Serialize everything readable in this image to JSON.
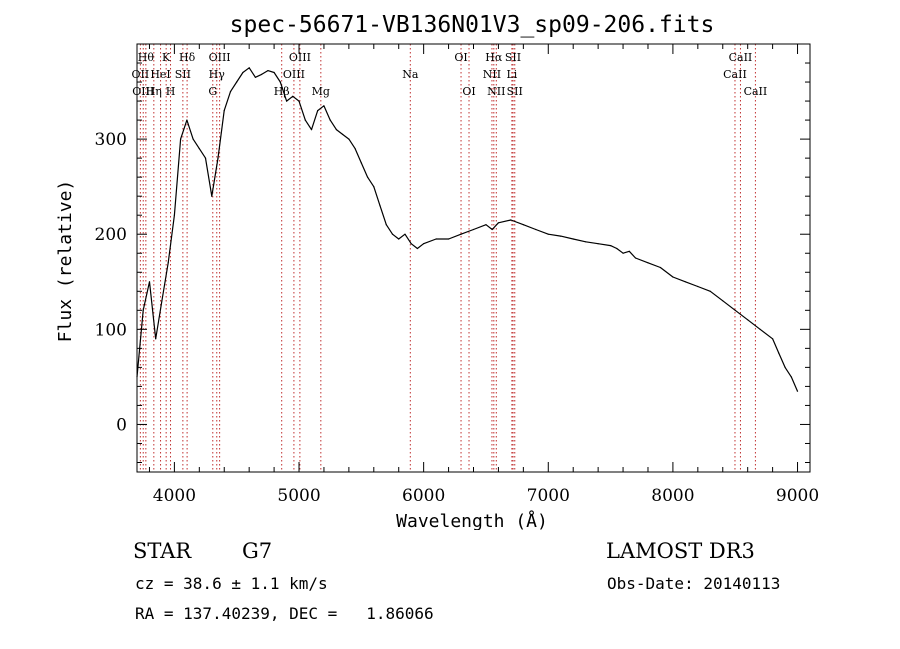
{
  "chart_data": {
    "type": "line",
    "title": "spec-56671-VB136N01V3_sp09-206.fits",
    "xlabel": "Wavelength (Å)",
    "ylabel": "Flux (relative)",
    "xlim": [
      3700,
      9100
    ],
    "ylim": [
      -50,
      400
    ],
    "xticks": [
      4000,
      5000,
      6000,
      7000,
      8000,
      9000
    ],
    "yticks": [
      0,
      100,
      200,
      300
    ],
    "grid": false,
    "series": [
      {
        "name": "flux",
        "color": "#000000",
        "x": [
          3700,
          3750,
          3800,
          3850,
          3900,
          3950,
          4000,
          4050,
          4100,
          4150,
          4200,
          4250,
          4300,
          4350,
          4400,
          4450,
          4500,
          4550,
          4600,
          4650,
          4700,
          4750,
          4800,
          4850,
          4900,
          4950,
          5000,
          5050,
          5100,
          5150,
          5200,
          5250,
          5300,
          5350,
          5400,
          5450,
          5500,
          5550,
          5600,
          5650,
          5700,
          5750,
          5800,
          5850,
          5900,
          5950,
          6000,
          6100,
          6200,
          6300,
          6400,
          6500,
          6550,
          6600,
          6700,
          6800,
          6900,
          7000,
          7100,
          7200,
          7300,
          7400,
          7500,
          7550,
          7600,
          7650,
          7700,
          7800,
          7900,
          8000,
          8100,
          8200,
          8300,
          8400,
          8500,
          8600,
          8700,
          8800,
          8850,
          8900,
          8950,
          9000
        ],
        "y": [
          50,
          120,
          150,
          90,
          130,
          170,
          220,
          300,
          320,
          300,
          290,
          280,
          240,
          280,
          330,
          350,
          360,
          370,
          375,
          365,
          368,
          372,
          370,
          360,
          340,
          345,
          340,
          320,
          310,
          330,
          335,
          320,
          310,
          305,
          300,
          290,
          275,
          260,
          250,
          230,
          210,
          200,
          195,
          200,
          190,
          185,
          190,
          195,
          195,
          200,
          205,
          210,
          205,
          212,
          215,
          210,
          205,
          200,
          198,
          195,
          192,
          190,
          188,
          185,
          180,
          182,
          175,
          170,
          165,
          155,
          150,
          145,
          140,
          130,
          120,
          110,
          100,
          90,
          75,
          60,
          50,
          35
        ]
      }
    ],
    "line_markers": [
      {
        "x": 3727,
        "label": "OII",
        "row": 1
      },
      {
        "x": 3750,
        "label": "OIII",
        "row": 2
      },
      {
        "x": 3771,
        "label": "Hθ",
        "row": 0
      },
      {
        "x": 3835,
        "label": "Hη",
        "row": 2
      },
      {
        "x": 3889,
        "label": "HeI",
        "row": 1
      },
      {
        "x": 3934,
        "label": "K",
        "row": 0
      },
      {
        "x": 3969,
        "label": "H",
        "row": 2
      },
      {
        "x": 4068,
        "label": "SII",
        "row": 1
      },
      {
        "x": 4102,
        "label": "Hδ",
        "row": 0
      },
      {
        "x": 4308,
        "label": "G",
        "row": 2
      },
      {
        "x": 4340,
        "label": "Hγ",
        "row": 1
      },
      {
        "x": 4363,
        "label": "OIII",
        "row": 0
      },
      {
        "x": 4861,
        "label": "Hβ",
        "row": 2
      },
      {
        "x": 4959,
        "label": "OIII",
        "row": 1
      },
      {
        "x": 5007,
        "label": "OIII",
        "row": 0
      },
      {
        "x": 5175,
        "label": "Mg",
        "row": 2
      },
      {
        "x": 5893,
        "label": "Na",
        "row": 1
      },
      {
        "x": 6300,
        "label": "OI",
        "row": 0
      },
      {
        "x": 6364,
        "label": "OI",
        "row": 2
      },
      {
        "x": 6548,
        "label": "NII",
        "row": 1
      },
      {
        "x": 6563,
        "label": "Hα",
        "row": 0
      },
      {
        "x": 6583,
        "label": "NII",
        "row": 2
      },
      {
        "x": 6708,
        "label": "Li",
        "row": 1
      },
      {
        "x": 6717,
        "label": "SII",
        "row": 0
      },
      {
        "x": 6731,
        "label": "SII",
        "row": 2
      },
      {
        "x": 8498,
        "label": "CaII",
        "row": 1
      },
      {
        "x": 8542,
        "label": "CaII",
        "row": 0
      },
      {
        "x": 8662,
        "label": "CaII",
        "row": 2
      }
    ],
    "marker_color": "#c03030"
  },
  "info": {
    "object_class": "STAR",
    "subclass": "G7",
    "survey": "LAMOST DR3",
    "redshift": "cz = 38.6 ± 1.1 km/s",
    "obs_date": "Obs-Date: 20140113",
    "coords": "RA = 137.40239, DEC =   1.86066"
  }
}
